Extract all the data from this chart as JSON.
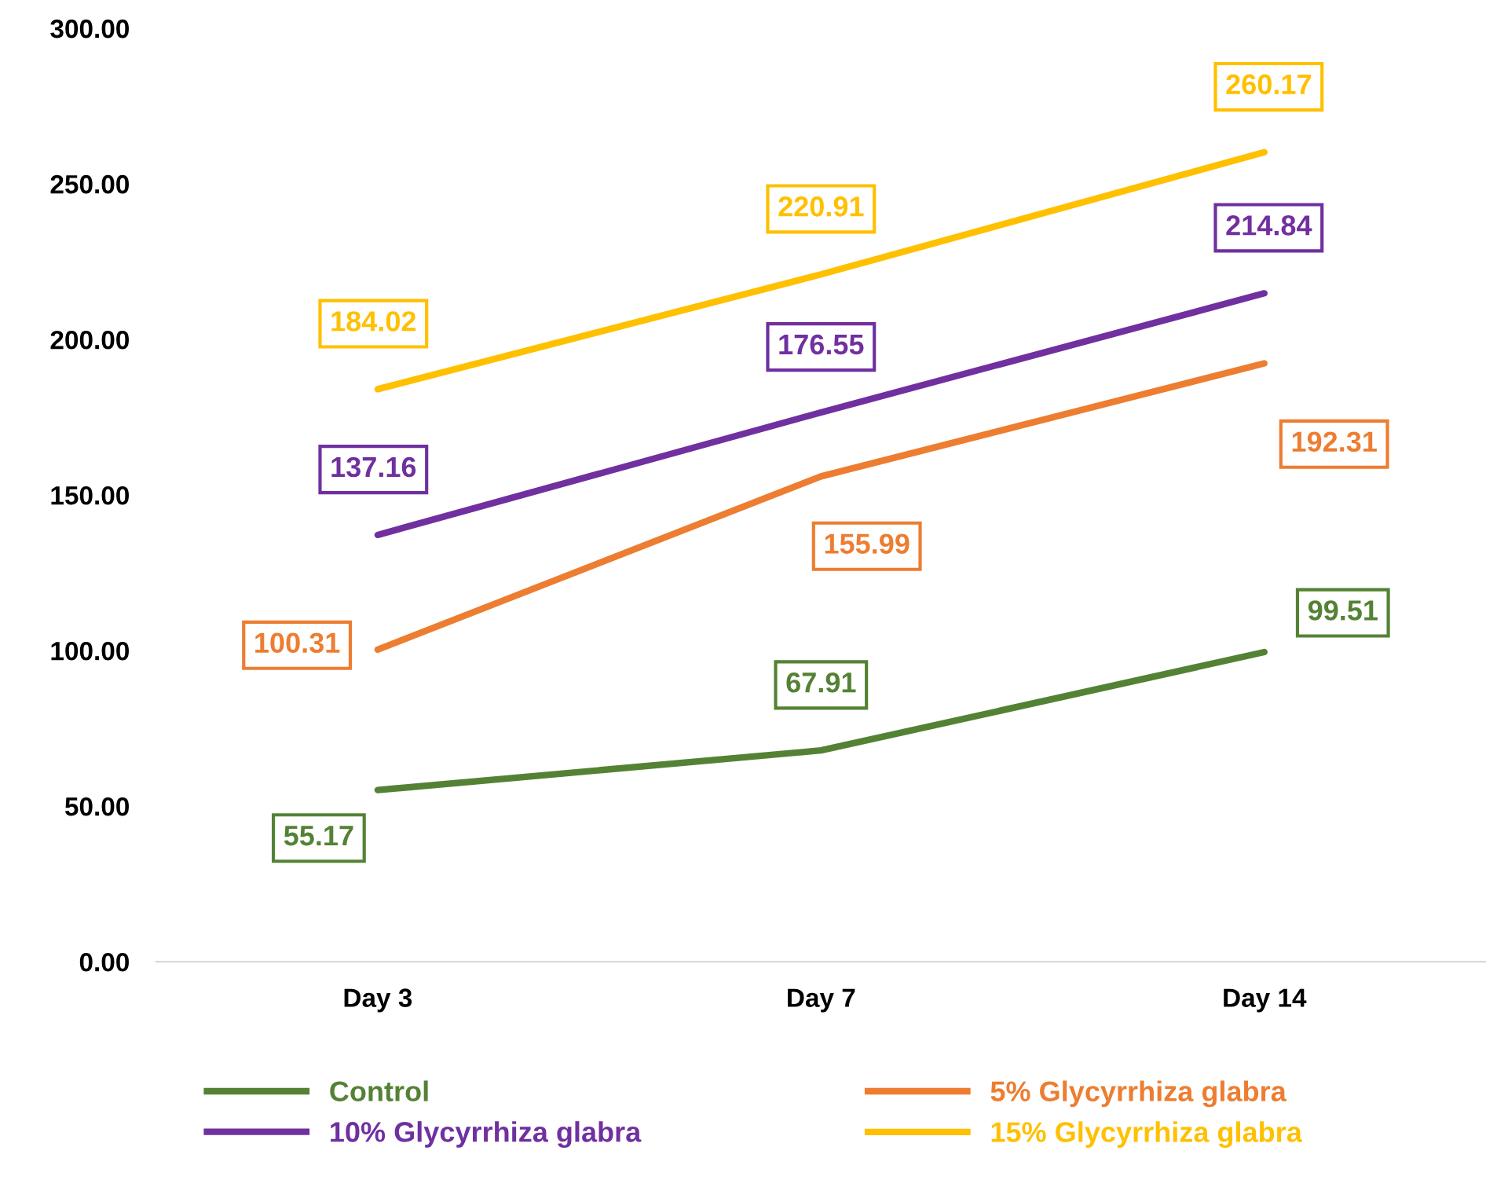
{
  "chart_data": {
    "type": "line",
    "categories": [
      "Day 3",
      "Day 7",
      "Day 14"
    ],
    "series": [
      {
        "name": "Control",
        "color": "#548235",
        "values": [
          55.17,
          67.91,
          99.51
        ]
      },
      {
        "name": "5% Glycyrrhiza glabra",
        "color": "#ed7d31",
        "values": [
          100.31,
          155.99,
          192.31
        ]
      },
      {
        "name": "10% Glycyrrhiza glabra",
        "color": "#7030a0",
        "values": [
          137.16,
          176.55,
          214.84
        ]
      },
      {
        "name": "15% Glycyrrhiza glabra",
        "color": "#ffc000",
        "values": [
          184.02,
          220.91,
          260.17
        ]
      }
    ],
    "ylim": [
      0,
      300
    ],
    "yticks": [
      {
        "value": 0,
        "label": "0.00"
      },
      {
        "value": 50,
        "label": "50.00"
      },
      {
        "value": 100,
        "label": "100.00"
      },
      {
        "value": 150,
        "label": "150.00"
      },
      {
        "value": 200,
        "label": "200.00"
      },
      {
        "value": 250,
        "label": "250.00"
      },
      {
        "value": 300,
        "label": "300.00"
      }
    ],
    "data_labels": true,
    "grid": false,
    "legend": "bottom",
    "marker": "none",
    "line_style": "solid"
  }
}
